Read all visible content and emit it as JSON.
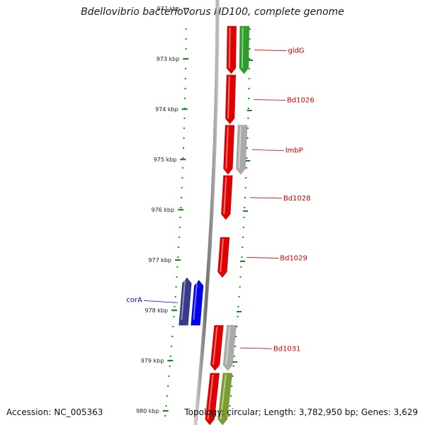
{
  "header": {
    "title": "Bdellovibrio bacteriovorus HD100, complete genome"
  },
  "footer": {
    "accession": "Accession: NC_005363",
    "summary": "Topology: circular; Length: 3,782,950 bp; Genes: 3,629"
  },
  "ticks": [
    {
      "kbp": 972,
      "label": "972 kbp"
    },
    {
      "kbp": 973,
      "label": "973 kbp"
    },
    {
      "kbp": 974,
      "label": "974 kbp"
    },
    {
      "kbp": 975,
      "label": "975 kbp"
    },
    {
      "kbp": 976,
      "label": "976 kbp"
    },
    {
      "kbp": 977,
      "label": "977 kbp"
    },
    {
      "kbp": 978,
      "label": "978 kbp"
    },
    {
      "kbp": 979,
      "label": "979 kbp"
    },
    {
      "kbp": 980,
      "label": "980 kbp"
    }
  ],
  "genes": [
    {
      "name": "gldG",
      "track": "forward",
      "color": "#e00000",
      "start_kbp": 972.35,
      "end_kbp": 973.3
    },
    {
      "name": "Bd1026",
      "track": "forward",
      "color": "#e00000",
      "start_kbp": 973.32,
      "end_kbp": 974.3
    },
    {
      "name": "lmbP",
      "track": "forward",
      "color": "#e00000",
      "start_kbp": 974.32,
      "end_kbp": 975.3
    },
    {
      "name": "Bd1028",
      "track": "forward",
      "color": "#e00000",
      "start_kbp": 975.32,
      "end_kbp": 976.2
    },
    {
      "name": "Bd1029",
      "track": "forward",
      "color": "#e00000",
      "start_kbp": 976.55,
      "end_kbp": 977.35
    },
    {
      "name": "Bd1031",
      "track": "forward",
      "color": "#e00000",
      "start_kbp": 978.3,
      "end_kbp": 979.2
    },
    {
      "name": "",
      "track": "forward",
      "color": "#e00000",
      "start_kbp": 979.25,
      "end_kbp": 980.35
    },
    {
      "name": "",
      "track": "cds",
      "color": "#2d9e2d",
      "start_kbp": 972.35,
      "end_kbp": 973.3
    },
    {
      "name": "",
      "track": "cds",
      "color": "#aaaaaa",
      "start_kbp": 974.32,
      "end_kbp": 975.3
    },
    {
      "name": "",
      "track": "cds",
      "color": "#aaaaaa",
      "start_kbp": 978.3,
      "end_kbp": 979.2
    },
    {
      "name": "",
      "track": "cds",
      "color": "#7a9e2e",
      "start_kbp": 979.25,
      "end_kbp": 980.35
    },
    {
      "name": "corA",
      "track": "reverse",
      "color": "#0000ee",
      "start_kbp": 977.4,
      "end_kbp": 978.3
    },
    {
      "name": "",
      "track": "reverse-outer",
      "color": "#3a3a8a",
      "start_kbp": 977.35,
      "end_kbp": 978.3
    }
  ],
  "colors": {
    "tick": "#1e8a1e",
    "backbone": "#888888",
    "forward_label": "#cc0000",
    "reverse_label": "#0000cc"
  }
}
